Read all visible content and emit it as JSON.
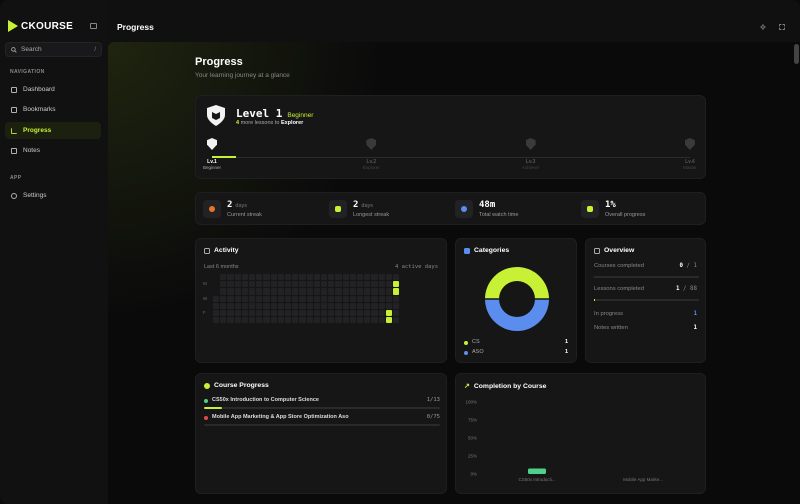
{
  "app": {
    "logo_text": "CKOURSE",
    "page_title": "Progress",
    "colors": {
      "accent": "#c8f135",
      "blue": "#5b8dee",
      "green": "#4fd08a",
      "red": "#e04a4a"
    }
  },
  "sidebar": {
    "search_label": "Search",
    "search_shortcut": "/",
    "nav_heading": "NAVIGATION",
    "app_heading": "APP",
    "items": [
      {
        "label": "Dashboard",
        "icon": "grid-icon"
      },
      {
        "label": "Bookmarks",
        "icon": "bookmark-icon"
      },
      {
        "label": "Progress",
        "icon": "chart-icon",
        "active": true
      },
      {
        "label": "Notes",
        "icon": "note-icon"
      }
    ],
    "app_items": [
      {
        "label": "Settings",
        "icon": "gear-icon"
      }
    ]
  },
  "header": {
    "title": "Progress",
    "subtitle": "Your learning journey at a glance"
  },
  "level": {
    "title": "Level 1",
    "rank": "Beginner",
    "hint_count": "4",
    "hint_text": "more lessons to",
    "hint_target": "Explorer",
    "progress": 0.05,
    "steps": [
      {
        "label": "Lv.1",
        "name": "Beginner"
      },
      {
        "label": "Lv.2",
        "name": "Explorer"
      },
      {
        "label": "Lv.3",
        "name": "Achiever"
      },
      {
        "label": "Lv.4",
        "name": "Master"
      }
    ]
  },
  "stats": [
    {
      "value": "2",
      "unit": "days",
      "label": "Current streak"
    },
    {
      "value": "2",
      "unit": "days",
      "label": "Longest streak"
    },
    {
      "value": "48m",
      "unit": "",
      "label": "Total watch time"
    },
    {
      "value": "1%",
      "unit": "",
      "label": "Overall progress"
    }
  ],
  "activity": {
    "title": "Activity",
    "range": "Last 6 months",
    "active_days": "4 active days",
    "row_labels": [
      "M",
      "W",
      "F"
    ]
  },
  "categories": {
    "title": "Categories",
    "items": [
      {
        "name": "CS",
        "count": "1",
        "color": "#c8f135"
      },
      {
        "name": "ASO",
        "count": "1",
        "color": "#5b8dee"
      }
    ]
  },
  "overview": {
    "title": "Overview",
    "courses_label": "Courses completed",
    "courses_value": "0",
    "courses_total": "1",
    "courses_progress": 0,
    "lessons_label": "Lessons completed",
    "lessons_value": "1",
    "lessons_total": "88",
    "lessons_progress": 0.011,
    "inprogress_label": "In progress",
    "inprogress_value": "1",
    "notes_label": "Notes written",
    "notes_value": "1"
  },
  "course_progress": {
    "title": "Course Progress",
    "items": [
      {
        "name": "CS50x Introduction to Computer Science",
        "count": "1/13",
        "progress": 0.077,
        "color": "#4fd08a"
      },
      {
        "name": "Mobile App Marketing & App Store Optimization Aso",
        "count": "0/75",
        "progress": 0,
        "color": "#e04a4a"
      }
    ]
  },
  "chart_data": {
    "type": "bar",
    "title": "Completion by Course",
    "categories": [
      "CS50x Introducti...",
      "Mobile App Marke..."
    ],
    "values": [
      7.7,
      0
    ],
    "ylim": [
      0,
      100
    ],
    "yticks": [
      "100%",
      "75%",
      "50%",
      "25%",
      "0%"
    ]
  }
}
